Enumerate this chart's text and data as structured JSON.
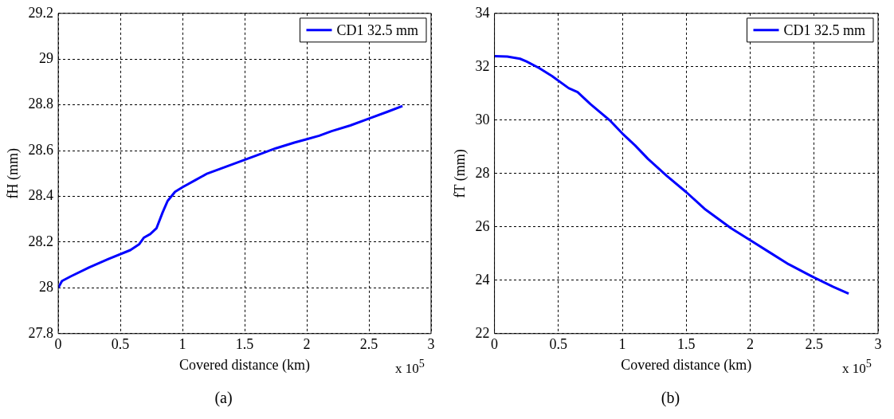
{
  "chart_data": [
    {
      "type": "line",
      "xlabel": "Covered distance (km)",
      "ylabel": "fH (mm)",
      "xlim": [
        0,
        3
      ],
      "xticks": [
        0,
        0.5,
        1,
        1.5,
        2,
        2.5,
        3
      ],
      "ylim": [
        27.8,
        29.2
      ],
      "yticks": [
        27.8,
        28,
        28.2,
        28.4,
        28.6,
        28.8,
        29,
        29.2
      ],
      "grid": true,
      "legend": "top right",
      "line_style": "solid",
      "marker": "none",
      "x": [
        0,
        0.03,
        0.1,
        0.25,
        0.4,
        0.58,
        0.65,
        0.69,
        0.74,
        0.79,
        0.84,
        0.88,
        0.94,
        1.0,
        1.1,
        1.2,
        1.3,
        1.4,
        1.5,
        1.6,
        1.75,
        1.9,
        2.0,
        2.1,
        2.2,
        2.35,
        2.5,
        2.65,
        2.77
      ],
      "series": [
        {
          "name": "CD1 32.5 mm",
          "color": "#0000ff",
          "values": [
            28.0,
            28.03,
            28.05,
            28.09,
            28.125,
            28.165,
            28.19,
            28.22,
            28.235,
            28.26,
            28.33,
            28.38,
            28.42,
            28.44,
            28.47,
            28.5,
            28.52,
            28.54,
            28.56,
            28.58,
            28.61,
            28.635,
            28.65,
            28.665,
            28.685,
            28.71,
            28.74,
            28.77,
            28.795
          ]
        }
      ],
      "annotations": [
        "x 10$^{5}$",
        "(a)"
      ]
    },
    {
      "type": "line",
      "xlabel": "Covered distance (km)",
      "ylabel": "fT (mm)",
      "xlim": [
        0,
        3
      ],
      "xticks": [
        0,
        0.5,
        1,
        1.5,
        2,
        2.5,
        3
      ],
      "ylim": [
        22,
        34
      ],
      "yticks": [
        22,
        24,
        26,
        28,
        30,
        32,
        34
      ],
      "grid": true,
      "legend": "top right",
      "line_style": "solid",
      "marker": "none",
      "x": [
        0,
        0.1,
        0.2,
        0.25,
        0.35,
        0.45,
        0.58,
        0.65,
        0.75,
        0.9,
        1.0,
        1.1,
        1.2,
        1.35,
        1.5,
        1.65,
        1.85,
        2.0,
        2.15,
        2.3,
        2.5,
        2.65,
        2.77
      ],
      "series": [
        {
          "name": "CD1 32.5 mm",
          "color": "#0000ff",
          "values": [
            32.4,
            32.38,
            32.3,
            32.2,
            31.95,
            31.65,
            31.2,
            31.05,
            30.6,
            30.0,
            29.5,
            29.05,
            28.55,
            27.9,
            27.3,
            26.65,
            25.95,
            25.5,
            25.05,
            24.6,
            24.1,
            23.75,
            23.5
          ]
        }
      ],
      "annotations": [
        "x 10$^{5}$",
        "(b)"
      ]
    }
  ]
}
